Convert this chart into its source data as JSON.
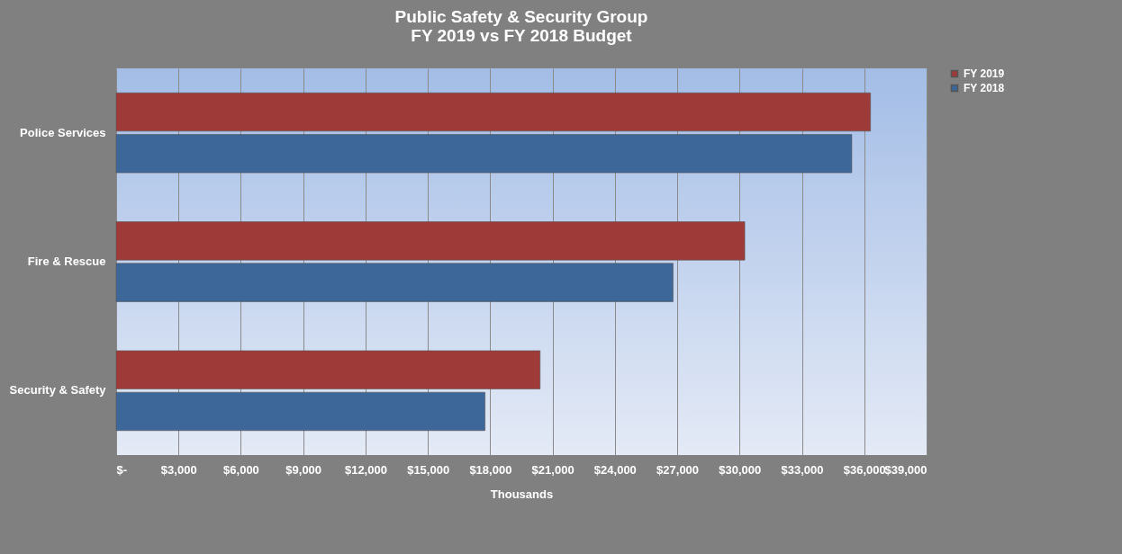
{
  "chart_data": {
    "type": "bar",
    "orientation": "horizontal",
    "title": "Public Safety & Security Group\nFY 2019 vs FY 2018 Budget",
    "xlabel": "Thousands",
    "categories": [
      "Police Services",
      "Fire & Rescue",
      "Security & Safety"
    ],
    "series": [
      {
        "name": "FY 2019",
        "color": "#9e3b39",
        "values": [
          36300,
          30250,
          20400
        ]
      },
      {
        "name": "FY 2018",
        "color": "#3d6699",
        "values": [
          35400,
          26800,
          17750
        ]
      }
    ],
    "xlim": [
      0,
      39000
    ],
    "xticks": [
      {
        "value": 0,
        "label": "$-"
      },
      {
        "value": 3000,
        "label": "$3,000"
      },
      {
        "value": 6000,
        "label": "$6,000"
      },
      {
        "value": 9000,
        "label": "$9,000"
      },
      {
        "value": 12000,
        "label": "$12,000"
      },
      {
        "value": 15000,
        "label": "$15,000"
      },
      {
        "value": 18000,
        "label": "$18,000"
      },
      {
        "value": 21000,
        "label": "$21,000"
      },
      {
        "value": 24000,
        "label": "$24,000"
      },
      {
        "value": 27000,
        "label": "$27,000"
      },
      {
        "value": 30000,
        "label": "$30,000"
      },
      {
        "value": 33000,
        "label": "$33,000"
      },
      {
        "value": 36000,
        "label": "$36,000"
      },
      {
        "value": 39000,
        "label": "$39,000"
      }
    ],
    "grid": "x",
    "legend": "right"
  }
}
